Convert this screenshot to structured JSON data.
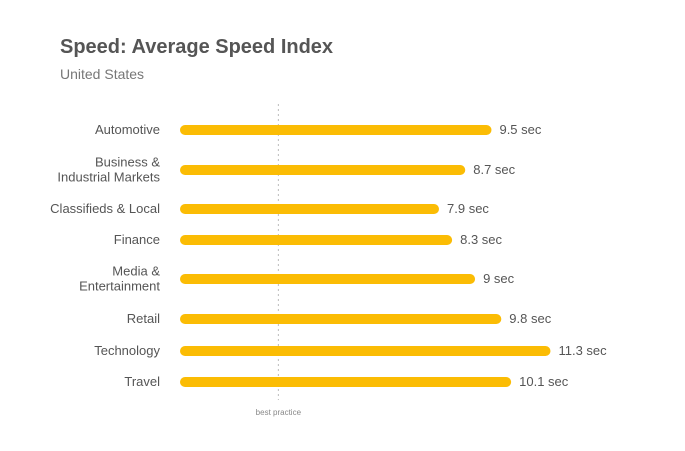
{
  "chart_data": {
    "type": "bar",
    "orientation": "horizontal",
    "title": "Speed: Average Speed Index",
    "subtitle": "United States",
    "categories": [
      [
        "Automotive"
      ],
      [
        "Business &",
        "Industrial Markets"
      ],
      [
        "Classifieds & Local"
      ],
      [
        "Finance"
      ],
      [
        "Media &",
        "Entertainment"
      ],
      [
        "Retail"
      ],
      [
        "Technology"
      ],
      [
        "Travel"
      ]
    ],
    "values": [
      9.5,
      8.7,
      7.9,
      8.3,
      9,
      9.8,
      11.3,
      10.1
    ],
    "value_labels": [
      "9.5 sec",
      "8.7 sec",
      "7.9 sec",
      "8.3 sec",
      "9 sec",
      "9.8 sec",
      "11.3 sec",
      "10.1 sec"
    ],
    "unit": "sec",
    "xlim": [
      0,
      12.2
    ],
    "reference_line": {
      "value": 3,
      "label": "best practice"
    },
    "bar_color": "#FBBC04",
    "reference_color": "#BBBBBB",
    "grid": false,
    "legend": "none"
  }
}
